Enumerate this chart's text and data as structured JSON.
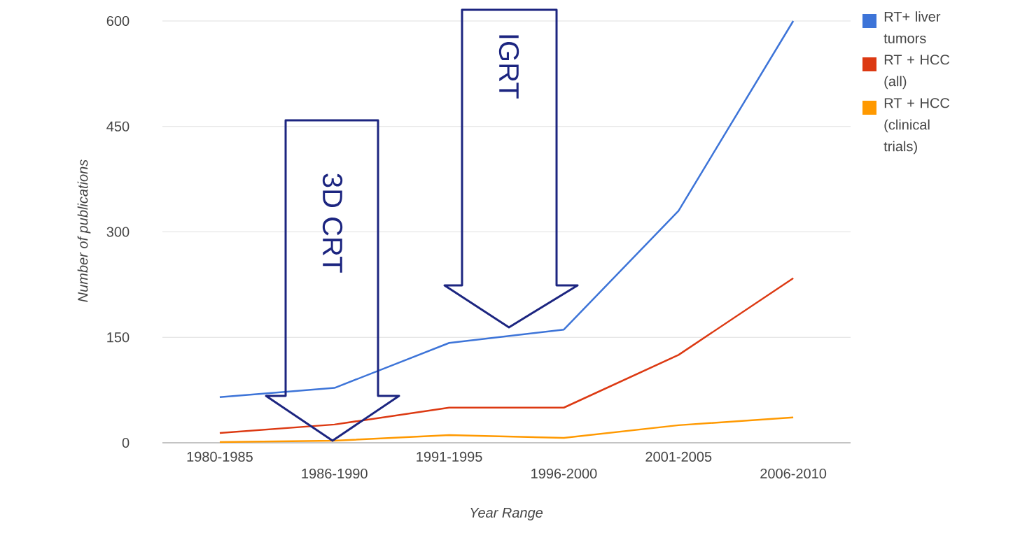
{
  "chart_data": {
    "type": "line",
    "xlabel": "Year Range",
    "ylabel": "Number of publications",
    "categories": [
      "1980-1985",
      "1986-1990",
      "1991-1995",
      "1996-2000",
      "2001-2005",
      "2006-2010"
    ],
    "series": [
      {
        "name": "RT+ liver tumors",
        "color": "#3d74d8",
        "values": [
          65,
          78,
          142,
          161,
          330,
          600
        ]
      },
      {
        "name": "RT + HCC (all)",
        "color": "#dc3912",
        "values": [
          14,
          26,
          50,
          50,
          125,
          234
        ]
      },
      {
        "name": "RT + HCC (clinical trials)",
        "color": "#ff9900",
        "values": [
          1,
          3,
          11,
          7,
          25,
          36
        ]
      }
    ],
    "ylim": [
      0,
      600
    ],
    "yticks": [
      0,
      150,
      300,
      450,
      600
    ],
    "grid": "y",
    "legend": "right",
    "annotations": [
      "3D CRT",
      "IGRT"
    ]
  }
}
